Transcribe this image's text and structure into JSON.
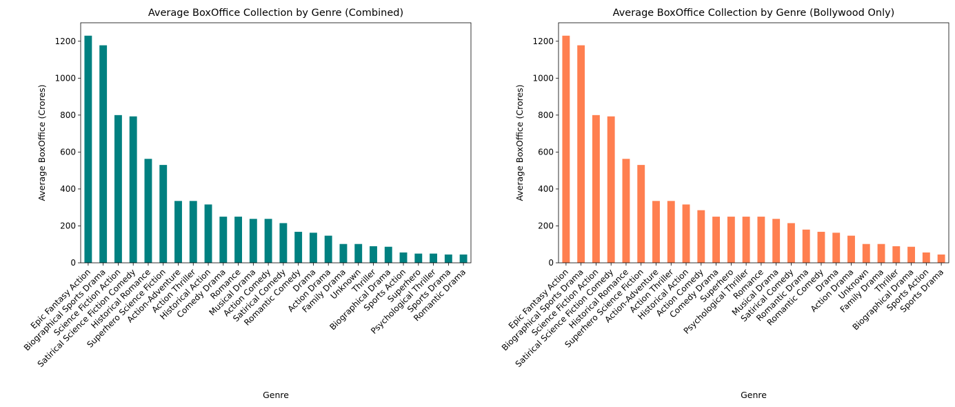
{
  "chart_data": [
    {
      "type": "bar",
      "title": "Average BoxOffice Collection by Genre (Combined)",
      "xlabel": "Genre",
      "ylabel": "Average BoxOffice (Crores)",
      "ylim": [
        0,
        1300
      ],
      "yticks": [
        0,
        200,
        400,
        600,
        800,
        1000,
        1200
      ],
      "color": "#008080",
      "categories": [
        "Epic Fantasy Action",
        "Biographical Sports Drama",
        "Science Fiction Action",
        "Satirical Science Fiction Comedy",
        "Historical Romance",
        "Superhero Science Fiction",
        "Action-Adventure",
        "Action Thriller",
        "Historical Action",
        "Comedy Drama",
        "Romance",
        "Musical Drama",
        "Action Comedy",
        "Satirical Comedy",
        "Romantic Comedy",
        "Drama",
        "Action Drama",
        "Family Drama",
        "Unknown",
        "Thriller",
        "Biographical Drama",
        "Sports Action",
        "Superhero",
        "Psychological Thriller",
        "Sports Drama",
        "Romantic Drama"
      ],
      "values": [
        1230,
        1178,
        800,
        793,
        563,
        530,
        335,
        335,
        316,
        250,
        250,
        238,
        238,
        215,
        168,
        163,
        147,
        102,
        102,
        90,
        87,
        56,
        50,
        50,
        45,
        45
      ]
    },
    {
      "type": "bar",
      "title": "Average BoxOffice Collection by Genre (Bollywood Only)",
      "xlabel": "Genre",
      "ylabel": "Average BoxOffice (Crores)",
      "ylim": [
        0,
        1300
      ],
      "yticks": [
        0,
        200,
        400,
        600,
        800,
        1000,
        1200
      ],
      "color": "#ff7f50",
      "categories": [
        "Epic Fantasy Action",
        "Biographical Sports Drama",
        "Science Fiction Action",
        "Satirical Science Fiction Comedy",
        "Historical Romance",
        "Superhero Science Fiction",
        "Action-Adventure",
        "Action Thriller",
        "Historical Action",
        "Action Comedy",
        "Comedy Drama",
        "Superhero",
        "Psychological Thriller",
        "Romance",
        "Musical Drama",
        "Satirical Comedy",
        "Romantic Drama",
        "Romantic Comedy",
        "Drama",
        "Action Drama",
        "Unknown",
        "Family Drama",
        "Thriller",
        "Biographical Drama",
        "Sports Action",
        "Sports Drama"
      ],
      "values": [
        1230,
        1178,
        800,
        793,
        563,
        530,
        335,
        335,
        316,
        285,
        250,
        250,
        250,
        250,
        238,
        215,
        180,
        168,
        163,
        147,
        102,
        102,
        90,
        87,
        56,
        45
      ]
    }
  ]
}
